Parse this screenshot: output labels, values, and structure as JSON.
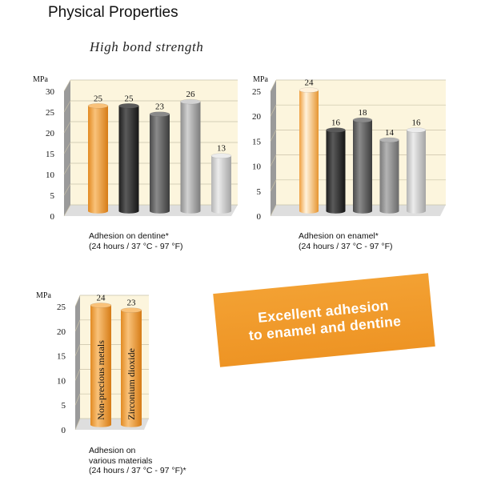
{
  "header": {
    "title": "Physical Properties",
    "subtitle": "High bond strength"
  },
  "banner": {
    "line1": "Excellent adhesion",
    "line2": "to enamel and dentine"
  },
  "colors": {
    "orange": "#f0a040",
    "black": "#3a3a3a",
    "dark_gray": "#6e6e6e",
    "mid_gray": "#8e8e8e",
    "light_gray": "#b5b5b5",
    "lighter_gray": "#cfcfcf",
    "panel_bg": "#fcf5dd",
    "banner": "#f09a2a"
  },
  "chart_data": [
    {
      "type": "bar",
      "unit": "MPa",
      "ylim": [
        0,
        30
      ],
      "yticks": [
        0,
        5,
        10,
        15,
        20,
        25,
        30
      ],
      "values": [
        25,
        25,
        23,
        26,
        13
      ],
      "data_labels": [
        "25",
        "25",
        "23",
        "26",
        "13"
      ],
      "bar_colors": [
        "orange",
        "black",
        "dark_gray",
        "light_gray",
        "lighter_gray"
      ],
      "caption": [
        "Adhesion on dentine*",
        "(24 hours / 37 °C - 97 °F)"
      ]
    },
    {
      "type": "bar",
      "unit": "MPa",
      "ylim": [
        0,
        25
      ],
      "yticks": [
        0,
        5,
        10,
        15,
        20,
        25
      ],
      "values": [
        24,
        16,
        18,
        14,
        16
      ],
      "data_labels": [
        "24",
        "16",
        "18",
        "14",
        "16"
      ],
      "bar_colors": [
        "orange_light",
        "black",
        "dark_gray",
        "mid_gray",
        "lighter_gray"
      ],
      "caption": [
        "Adhesion on enamel*",
        "(24 hours / 37 °C - 97 °F)"
      ]
    },
    {
      "type": "bar",
      "unit": "MPa",
      "ylim": [
        0,
        25
      ],
      "yticks": [
        0,
        5,
        10,
        15,
        20,
        25
      ],
      "categories": [
        "Non-precious metals",
        "Zirconium dioxide"
      ],
      "values": [
        24,
        23
      ],
      "data_labels": [
        "24",
        "23"
      ],
      "bar_colors": [
        "orange",
        "orange"
      ],
      "caption": [
        "Adhesion on",
        "various materials",
        "(24 hours / 37 °C - 97 °F)*"
      ]
    }
  ]
}
